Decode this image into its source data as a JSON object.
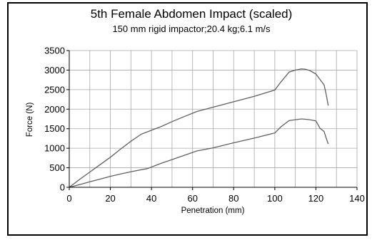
{
  "chart_data": {
    "type": "line",
    "title": "5th Female Abdomen Impact (scaled)",
    "subtitle": "150 mm rigid impactor;20.4 kg;6.1 m/s",
    "xlabel": "Penetration (mm)",
    "ylabel": "Force (N)",
    "xlim": [
      0,
      140
    ],
    "ylim": [
      0,
      3500
    ],
    "xticks": [
      0,
      20,
      40,
      60,
      80,
      100,
      120,
      140
    ],
    "yticks": [
      0,
      500,
      1000,
      1500,
      2000,
      2500,
      3000,
      3500
    ],
    "grid": true,
    "series": [
      {
        "x": [
          0,
          5,
          10,
          15,
          20,
          25,
          30,
          35,
          38,
          40,
          45,
          50,
          55,
          62,
          70,
          80,
          90,
          100,
          103,
          107,
          110,
          113,
          115,
          117,
          120,
          122,
          124,
          125,
          126
        ],
        "values": [
          0,
          200,
          390,
          580,
          770,
          980,
          1180,
          1360,
          1420,
          1460,
          1560,
          1680,
          1790,
          1940,
          2050,
          2190,
          2330,
          2490,
          2700,
          2950,
          3000,
          3030,
          3020,
          2990,
          2900,
          2760,
          2620,
          2380,
          2090
        ]
      },
      {
        "x": [
          0,
          5,
          10,
          15,
          20,
          25,
          30,
          38,
          45,
          50,
          55,
          62,
          70,
          80,
          90,
          100,
          103,
          107,
          110,
          113,
          115,
          117,
          120,
          122,
          124,
          125,
          126
        ],
        "values": [
          0,
          70,
          140,
          210,
          280,
          340,
          400,
          480,
          620,
          710,
          800,
          930,
          1010,
          1140,
          1260,
          1390,
          1550,
          1710,
          1730,
          1750,
          1740,
          1730,
          1700,
          1510,
          1430,
          1260,
          1110
        ]
      }
    ]
  }
}
